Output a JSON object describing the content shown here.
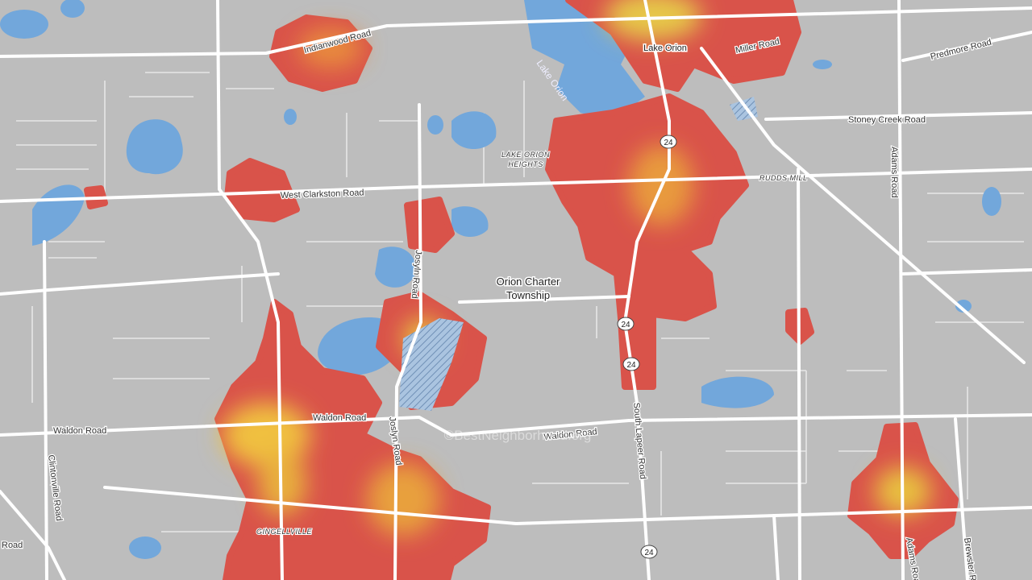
{
  "labels": [
    "Indianwood Road",
    "Lake Orion",
    "Lake Orion",
    "Miller Road",
    "Predmore Road",
    "Stoney Creek Road",
    "Adams Road",
    "LAKE ORION",
    "HEIGHTS",
    "RUDDS MILL",
    "West Clarkston Road",
    "Josyln Road",
    "Orion Charter",
    "Township",
    "Waldon Road",
    "Waldon Road",
    "Waldon Road",
    "Joslyn Road",
    "South Lapeer Road",
    "Clintonville Road",
    "GINGELLVILLE",
    "Road",
    "Adams Road",
    "Brewster Road"
  ],
  "shields": [
    "24",
    "24",
    "24",
    "24"
  ],
  "watermark": "©BestNeighborhood.org"
}
